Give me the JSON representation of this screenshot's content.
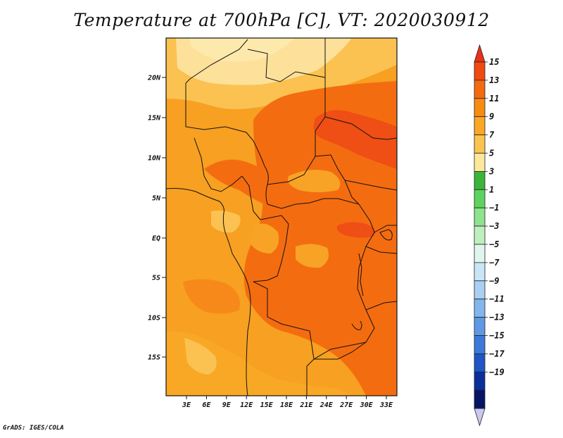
{
  "title": "Temperature at 700hPa [C], VT: 2020030912",
  "credit": "GrADS: IGES/COLA",
  "map": {
    "lat_labels": [
      "20N",
      "15N",
      "10N",
      "5N",
      "EQ",
      "5S",
      "10S",
      "15S"
    ],
    "lon_labels": [
      "3E",
      "6E",
      "9E",
      "12E",
      "15E",
      "18E",
      "21E",
      "24E",
      "27E",
      "30E",
      "33E"
    ]
  },
  "colorbar": {
    "labels": [
      "15",
      "13",
      "11",
      "9",
      "7",
      "5",
      "3",
      "1",
      "−1",
      "−3",
      "−5",
      "−7",
      "−9",
      "−11",
      "−13",
      "−15",
      "−17",
      "−19"
    ],
    "colors": [
      "#e8321a",
      "#f04a10",
      "#f46a0e",
      "#f88c10",
      "#faa824",
      "#fcc44e",
      "#fce89a",
      "#39b539",
      "#5fd35f",
      "#8ee38e",
      "#bfefbf",
      "#dff6ef",
      "#c9e6f6",
      "#a8d0f2",
      "#82b6ec",
      "#5f99e4",
      "#3d79d8",
      "#1f55c4",
      "#0b2e9c",
      "#071464",
      "#c9c9ee"
    ]
  }
}
